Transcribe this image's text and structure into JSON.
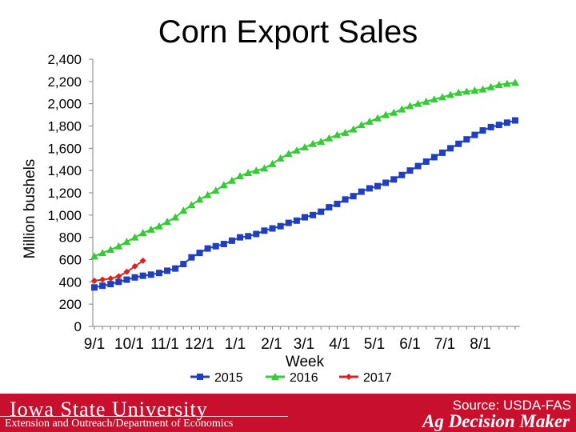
{
  "chart_data": {
    "type": "line",
    "title": "Corn Export Sales",
    "xlabel": "Week",
    "ylabel": "Million bushels",
    "ylim": [
      0,
      2400
    ],
    "yticks": [
      0,
      200,
      400,
      600,
      800,
      1000,
      1200,
      1400,
      1600,
      1800,
      2000,
      2200,
      2400
    ],
    "x_tick_labels": [
      "9/1",
      "10/1",
      "11/1",
      "12/1",
      "1/1",
      "2/1",
      "3/1",
      "4/1",
      "5/1",
      "6/1",
      "7/1",
      "8/1"
    ],
    "x_tick_weeks": [
      0,
      4.3,
      8.7,
      13,
      17.4,
      21.9,
      25.9,
      30.3,
      34.6,
      39,
      43.3,
      47.7
    ],
    "weeks_shown": 53,
    "legend_position": "bottom",
    "grid": false,
    "series": [
      {
        "name": "2015",
        "color": "#1f3fbf",
        "marker": "square",
        "values": [
          350,
          365,
          380,
          400,
          420,
          440,
          455,
          465,
          480,
          500,
          520,
          560,
          620,
          660,
          700,
          720,
          740,
          770,
          800,
          810,
          830,
          860,
          880,
          900,
          930,
          950,
          980,
          1000,
          1030,
          1070,
          1100,
          1140,
          1170,
          1210,
          1240,
          1260,
          1290,
          1320,
          1360,
          1400,
          1440,
          1480,
          1520,
          1560,
          1600,
          1640,
          1680,
          1720,
          1760,
          1790,
          1810,
          1830,
          1850
        ]
      },
      {
        "name": "2016",
        "color": "#33cc33",
        "marker": "triangle",
        "values": [
          630,
          660,
          690,
          720,
          760,
          800,
          840,
          870,
          900,
          940,
          980,
          1040,
          1090,
          1140,
          1180,
          1220,
          1270,
          1310,
          1350,
          1380,
          1400,
          1420,
          1460,
          1510,
          1550,
          1580,
          1610,
          1640,
          1660,
          1690,
          1720,
          1740,
          1770,
          1810,
          1840,
          1870,
          1900,
          1920,
          1950,
          1980,
          2000,
          2020,
          2040,
          2060,
          2080,
          2100,
          2110,
          2120,
          2130,
          2150,
          2170,
          2180,
          2190
        ]
      },
      {
        "name": "2017",
        "color": "#e02020",
        "marker": "diamond",
        "values": [
          410,
          420,
          430,
          450,
          490,
          540,
          590
        ]
      }
    ],
    "source": "Source: USDA-FAS"
  },
  "footer": {
    "university": "Iowa State University",
    "department": "Extension and Outreach/Department of Economics",
    "brand": "Ag Decision Maker"
  }
}
